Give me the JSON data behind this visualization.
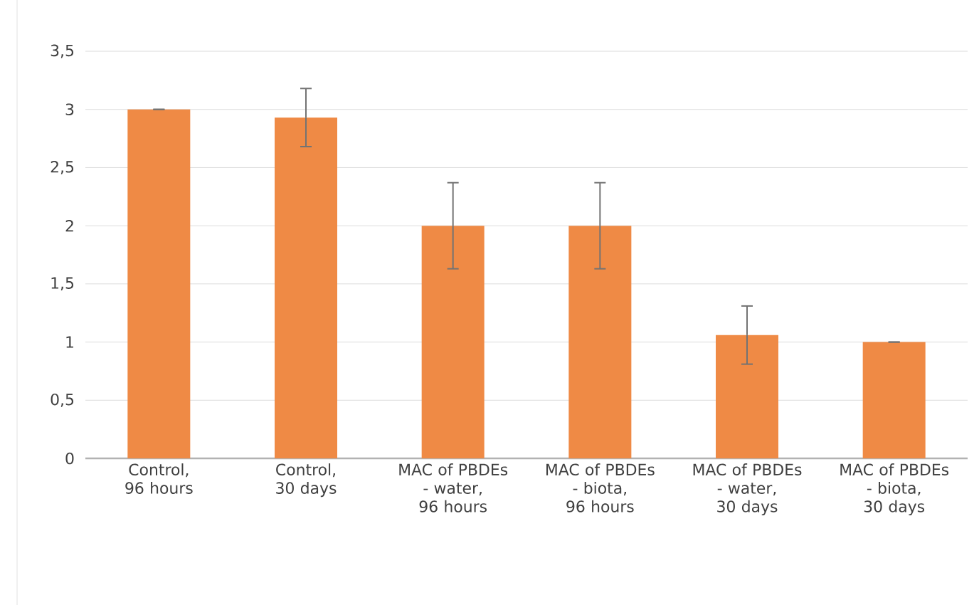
{
  "chart_data": {
    "type": "bar",
    "categories": [
      "Control, 96 hours",
      "Control, 30 days",
      "MAC of PBDEs - water, 96 hours",
      "MAC of PBDEs - biota, 96 hours",
      "MAC of PBDEs - water, 30 days",
      "MAC of PBDEs - biota, 30 days"
    ],
    "values": [
      3.0,
      2.93,
      2.0,
      2.0,
      1.06,
      1.0
    ],
    "errors": [
      0,
      0.25,
      0.37,
      0.37,
      0.25,
      0
    ],
    "color": "#ef8a45",
    "ylim": [
      0,
      3.5
    ],
    "yticks": [
      0,
      {
        "value": 0.5,
        "label": "0,5"
      },
      1,
      {
        "value": 1.5,
        "label": "1,5"
      },
      2,
      {
        "value": 2.5,
        "label": "2,5"
      },
      3,
      {
        "value": 3.5,
        "label": "3,5"
      }
    ],
    "grid": "y"
  }
}
